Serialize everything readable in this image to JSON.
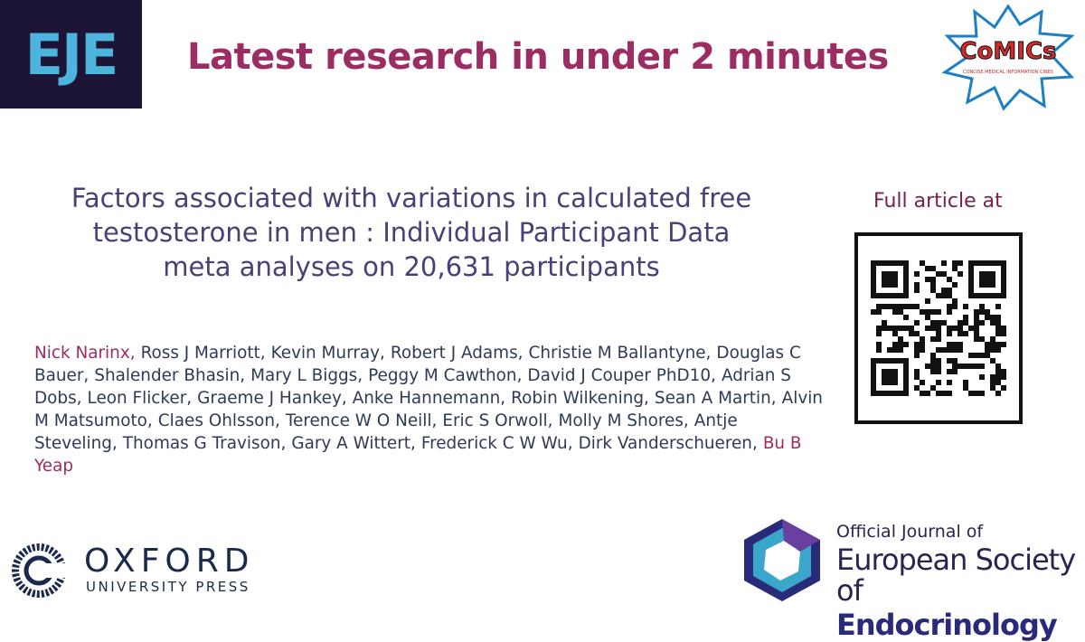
{
  "header": {
    "logo": "EJE",
    "title": "Latest research in under 2 minutes",
    "comics_logo": "CoMICs",
    "comics_tagline": "CONCISE MEDICAL INFORMATION CINES"
  },
  "article": {
    "title_lines": [
      "Factors associated with variations in calculated free",
      "testosterone in men : Individual Participant Data",
      "meta analyses on 20,631 participants"
    ],
    "authors": [
      "Nick Narinx,",
      "Ross J Marriott,",
      "Kevin Murray,",
      "Robert J Adams,",
      "Christie M Ballantyne,",
      "Douglas C Bauer,",
      "Shalender Bhasin,",
      "Mary L Biggs,",
      "Peggy M Cawthon,",
      "David J Couper PhD10,",
      "Adrian S Dobs,",
      "Leon Flicker,",
      "Graeme J Hankey,",
      "Anke Hannemann,",
      "Robin Wilkening,",
      "Sean A Martin,",
      "Alvin M Matsumoto,",
      "Claes Ohlsson,",
      "Terence W O Neill,",
      "Eric S Orwoll,",
      "Molly M Shores,",
      "Antje Steveling,",
      "Thomas G Travison,",
      "Gary A Wittert,",
      "Frederick C W Wu,",
      "Dirk Vanderschueren,",
      "Bu B Yeap"
    ]
  },
  "qr": {
    "label": "Full article at"
  },
  "footer": {
    "oxford": "OXFORD",
    "oxford_sub": "UNIVERSITY PRESS",
    "ese_line1": "Official Journal of",
    "ese_line2": "European Society",
    "ese_line3a": "of ",
    "ese_line3b": "Endocrinology"
  }
}
